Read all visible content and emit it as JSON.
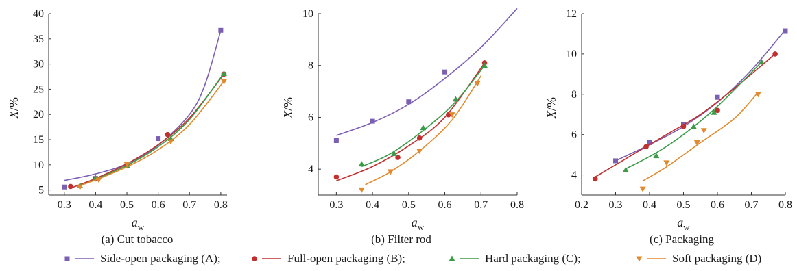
{
  "legend": [
    {
      "name": "Side-open packaging (A);",
      "color": "#7b5fb3",
      "marker": "square"
    },
    {
      "name": "Full-open packaging (B);",
      "color": "#c0302f",
      "marker": "circle"
    },
    {
      "name": "Hard packaging (C);",
      "color": "#3a9b48",
      "marker": "triangle-up"
    },
    {
      "name": "Soft packaging (D)",
      "color": "#e2892e",
      "marker": "triangle-down"
    }
  ],
  "chart_data": [
    {
      "type": "scatter",
      "caption": "(a) Cut tobacco",
      "xlabel": "a_w",
      "xlabel_main": "a",
      "xlabel_sub": "w",
      "ylabel": "X/%",
      "xlim": [
        0.25,
        0.82
      ],
      "ylim": [
        4,
        40
      ],
      "xticks": [
        0.3,
        0.4,
        0.5,
        0.6,
        0.7,
        0.8
      ],
      "yticks": [
        5,
        10,
        15,
        20,
        25,
        30,
        35,
        40
      ],
      "series": [
        {
          "name": "Side-open packaging (A)",
          "points": [
            [
              0.3,
              5.6
            ],
            [
              0.4,
              7.3
            ],
            [
              0.5,
              9.8
            ],
            [
              0.6,
              15.2
            ],
            [
              0.8,
              36.7
            ]
          ],
          "fit": [
            [
              0.3,
              6.9
            ],
            [
              0.4,
              8.2
            ],
            [
              0.5,
              10.2
            ],
            [
              0.6,
              13.9
            ],
            [
              0.7,
              20.0
            ],
            [
              0.75,
              26.0
            ],
            [
              0.8,
              36.7
            ]
          ]
        },
        {
          "name": "Full-open packaging (B)",
          "points": [
            [
              0.32,
              5.7
            ],
            [
              0.4,
              7.2
            ],
            [
              0.5,
              10.0
            ],
            [
              0.63,
              16.0
            ],
            [
              0.81,
              28.0
            ]
          ],
          "fit": [
            [
              0.32,
              5.4
            ],
            [
              0.4,
              7.3
            ],
            [
              0.5,
              10.2
            ],
            [
              0.6,
              14.0
            ],
            [
              0.7,
              19.3
            ],
            [
              0.81,
              28.0
            ]
          ]
        },
        {
          "name": "Hard packaging (C)",
          "points": [
            [
              0.35,
              5.9
            ],
            [
              0.4,
              7.4
            ],
            [
              0.5,
              9.9
            ],
            [
              0.64,
              15.2
            ],
            [
              0.81,
              28.1
            ]
          ],
          "fit": [
            [
              0.34,
              5.6
            ],
            [
              0.4,
              7.1
            ],
            [
              0.5,
              9.9
            ],
            [
              0.6,
              13.6
            ],
            [
              0.7,
              19.0
            ],
            [
              0.81,
              28.2
            ]
          ]
        },
        {
          "name": "Soft packaging (D)",
          "points": [
            [
              0.35,
              5.6
            ],
            [
              0.41,
              7.0
            ],
            [
              0.5,
              10.1
            ],
            [
              0.64,
              14.6
            ],
            [
              0.81,
              26.5
            ]
          ],
          "fit": [
            [
              0.34,
              5.7
            ],
            [
              0.4,
              7.0
            ],
            [
              0.5,
              9.6
            ],
            [
              0.6,
              13.0
            ],
            [
              0.7,
              18.0
            ],
            [
              0.81,
              26.6
            ]
          ]
        }
      ]
    },
    {
      "type": "scatter",
      "caption": "(b) Filter rod",
      "xlabel": "a_w",
      "xlabel_main": "a",
      "xlabel_sub": "w",
      "ylabel": "X/%",
      "xlim": [
        0.25,
        0.8
      ],
      "ylim": [
        3,
        10
      ],
      "xticks": [
        0.3,
        0.4,
        0.5,
        0.6,
        0.7,
        0.8
      ],
      "yticks": [
        4,
        6,
        8,
        10
      ],
      "series": [
        {
          "name": "Side-open packaging (A)",
          "points": [
            [
              0.3,
              5.1
            ],
            [
              0.4,
              5.85
            ],
            [
              0.5,
              6.6
            ],
            [
              0.6,
              7.75
            ]
          ],
          "fit": [
            [
              0.3,
              5.3
            ],
            [
              0.4,
              5.8
            ],
            [
              0.5,
              6.5
            ],
            [
              0.6,
              7.5
            ],
            [
              0.7,
              8.7
            ],
            [
              0.8,
              10.2
            ]
          ]
        },
        {
          "name": "Full-open packaging (B)",
          "points": [
            [
              0.3,
              3.7
            ],
            [
              0.47,
              4.45
            ],
            [
              0.53,
              5.2
            ],
            [
              0.61,
              6.1
            ],
            [
              0.71,
              8.1
            ]
          ],
          "fit": [
            [
              0.3,
              3.55
            ],
            [
              0.4,
              4.1
            ],
            [
              0.5,
              4.9
            ],
            [
              0.6,
              6.0
            ],
            [
              0.71,
              8.1
            ]
          ]
        },
        {
          "name": "Hard packaging (C)",
          "points": [
            [
              0.37,
              4.2
            ],
            [
              0.46,
              4.6
            ],
            [
              0.54,
              5.6
            ],
            [
              0.63,
              6.7
            ],
            [
              0.71,
              8.0
            ]
          ],
          "fit": [
            [
              0.37,
              4.1
            ],
            [
              0.45,
              4.6
            ],
            [
              0.55,
              5.6
            ],
            [
              0.63,
              6.6
            ],
            [
              0.71,
              8.0
            ]
          ]
        },
        {
          "name": "Soft packaging (D)",
          "points": [
            [
              0.37,
              3.2
            ],
            [
              0.45,
              3.9
            ],
            [
              0.53,
              4.7
            ],
            [
              0.62,
              6.1
            ],
            [
              0.69,
              7.3
            ]
          ],
          "fit": [
            [
              0.38,
              3.4
            ],
            [
              0.45,
              3.9
            ],
            [
              0.53,
              4.7
            ],
            [
              0.62,
              5.9
            ],
            [
              0.7,
              7.6
            ]
          ]
        }
      ]
    },
    {
      "type": "scatter",
      "caption": "(c) Packaging",
      "xlabel": "a_w",
      "xlabel_main": "a",
      "xlabel_sub": "w",
      "ylabel": "X/%",
      "xlim": [
        0.2,
        0.8
      ],
      "ylim": [
        3,
        12
      ],
      "xticks": [
        0.2,
        0.3,
        0.4,
        0.5,
        0.6,
        0.7,
        0.8
      ],
      "yticks": [
        4,
        6,
        8,
        10,
        12
      ],
      "series": [
        {
          "name": "Side-open packaging (A)",
          "points": [
            [
              0.3,
              4.7
            ],
            [
              0.4,
              5.6
            ],
            [
              0.5,
              6.5
            ],
            [
              0.6,
              7.85
            ],
            [
              0.8,
              11.15
            ]
          ],
          "fit": [
            [
              0.3,
              4.7
            ],
            [
              0.4,
              5.5
            ],
            [
              0.5,
              6.4
            ],
            [
              0.6,
              7.6
            ],
            [
              0.7,
              9.2
            ],
            [
              0.8,
              11.2
            ]
          ]
        },
        {
          "name": "Full-open packaging (B)",
          "points": [
            [
              0.24,
              3.8
            ],
            [
              0.39,
              5.4
            ],
            [
              0.5,
              6.4
            ],
            [
              0.6,
              7.2
            ],
            [
              0.77,
              10.0
            ]
          ],
          "fit": [
            [
              0.24,
              3.9
            ],
            [
              0.35,
              5.0
            ],
            [
              0.45,
              6.0
            ],
            [
              0.55,
              7.0
            ],
            [
              0.65,
              8.3
            ],
            [
              0.77,
              10.0
            ]
          ]
        },
        {
          "name": "Hard packaging (C)",
          "points": [
            [
              0.33,
              4.25
            ],
            [
              0.42,
              4.95
            ],
            [
              0.53,
              6.4
            ],
            [
              0.59,
              7.1
            ],
            [
              0.73,
              9.6
            ]
          ],
          "fit": [
            [
              0.33,
              4.3
            ],
            [
              0.42,
              5.1
            ],
            [
              0.5,
              6.0
            ],
            [
              0.6,
              7.4
            ],
            [
              0.73,
              9.6
            ]
          ]
        },
        {
          "name": "Soft packaging (D)",
          "points": [
            [
              0.38,
              3.3
            ],
            [
              0.45,
              4.6
            ],
            [
              0.54,
              5.6
            ],
            [
              0.56,
              6.2
            ],
            [
              0.72,
              8.0
            ]
          ],
          "fit": [
            [
              0.38,
              3.7
            ],
            [
              0.45,
              4.4
            ],
            [
              0.55,
              5.6
            ],
            [
              0.65,
              6.8
            ],
            [
              0.72,
              8.1
            ]
          ]
        }
      ]
    }
  ]
}
